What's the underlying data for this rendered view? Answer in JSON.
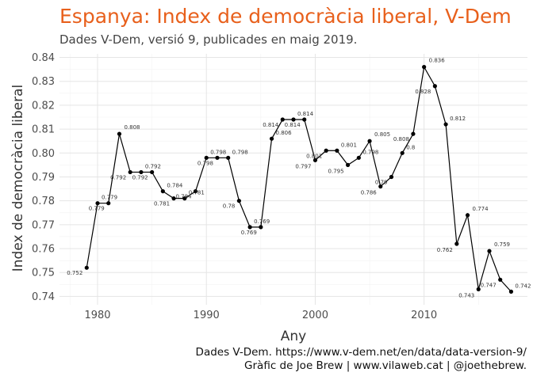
{
  "chart_data": {
    "type": "line",
    "title": "Espanya: Index de democràcia liberal, V-Dem",
    "subtitle": "Dades V-Dem, versió 9, publicades en maig 2019.",
    "xlabel": "Any",
    "ylabel": "Index de democràcia liberal",
    "caption_lines": [
      "Dades V-Dem. https://www.v-dem.net/en/data/data-version-9/",
      "Gràfic de Joe Brew | www.vilaweb.cat | @joethebrew."
    ],
    "xlim": [
      1976.5,
      2019.5
    ],
    "ylim": [
      0.7365,
      0.8415
    ],
    "x_ticks": [
      1980,
      1990,
      2000,
      2010
    ],
    "x_tick_labels": [
      "1980",
      "1990",
      "2000",
      "2010"
    ],
    "y_ticks": [
      0.74,
      0.75,
      0.76,
      0.77,
      0.78,
      0.79,
      0.8,
      0.81,
      0.82,
      0.83,
      0.84
    ],
    "y_tick_labels": [
      "0.74",
      "0.75",
      "0.76",
      "0.77",
      "0.78",
      "0.79",
      "0.80",
      "0.81",
      "0.82",
      "0.83",
      "0.84"
    ],
    "grid": true,
    "x": [
      1979,
      1980,
      1981,
      1982,
      1983,
      1984,
      1985,
      1986,
      1987,
      1988,
      1989,
      1990,
      1991,
      1992,
      1993,
      1994,
      1995,
      1996,
      1997,
      1998,
      1999,
      2000,
      2001,
      2002,
      2003,
      2004,
      2005,
      2006,
      2007,
      2008,
      2009,
      2010,
      2011,
      2012,
      2013,
      2014,
      2015,
      2016,
      2017,
      2018
    ],
    "values": [
      0.752,
      0.779,
      0.779,
      0.808,
      0.792,
      0.792,
      0.792,
      0.784,
      0.781,
      0.781,
      0.784,
      0.798,
      0.798,
      0.798,
      0.78,
      0.769,
      0.769,
      0.806,
      0.814,
      0.814,
      0.814,
      0.797,
      0.801,
      0.801,
      0.795,
      0.798,
      0.805,
      0.786,
      0.79,
      0.8,
      0.808,
      0.836,
      0.828,
      0.812,
      0.762,
      0.774,
      0.743,
      0.759,
      0.747,
      0.742
    ],
    "point_labels": [
      "0.752",
      "0.779",
      "0.779",
      "0.808",
      "0.792",
      "0.792",
      "0.792",
      "0.784",
      "0.781",
      "0.781",
      "0.784",
      "0.798",
      "0.798",
      "0.798",
      "0.78",
      "0.769",
      "0.769",
      "0.806",
      "0.814",
      "0.814",
      "0.814",
      "0.797",
      "0.801",
      "0.801",
      "0.795",
      "0.798",
      "0.805",
      "0.786",
      "0.79",
      "0.8",
      "0.808",
      "0.836",
      "0.828",
      "0.812",
      "0.762",
      "0.774",
      "0.743",
      "0.759",
      "0.747",
      "0.742"
    ],
    "colors": {
      "line": "#000000",
      "point": "#000000",
      "title": "#e8601c",
      "grid": "#e5e5e5"
    }
  }
}
